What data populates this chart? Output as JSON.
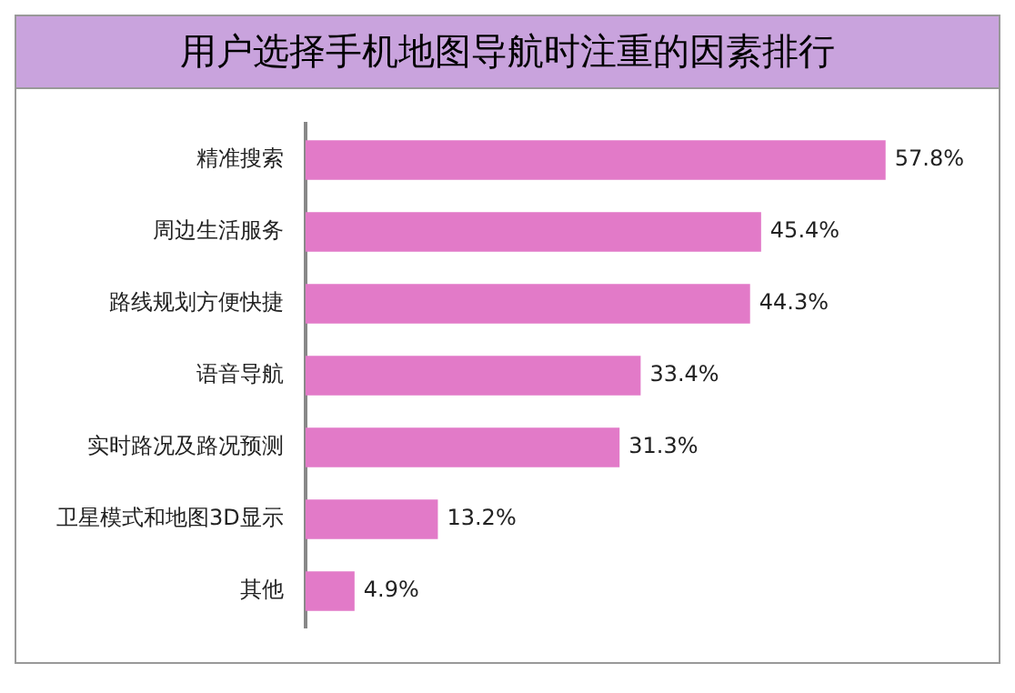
{
  "chart_data": {
    "type": "bar",
    "orientation": "horizontal",
    "title": "用户选择手机地图导航时注重的因素排行",
    "categories": [
      "精准搜索",
      "周边生活服务",
      "路线规划方便快捷",
      "语音导航",
      "实时路况及路况预测",
      "卫星模式和地图3D显示",
      "其他"
    ],
    "values": [
      57.8,
      45.4,
      44.3,
      33.4,
      31.3,
      13.2,
      4.9
    ],
    "value_labels": [
      "57.8%",
      "45.4%",
      "44.3%",
      "33.4%",
      "31.3%",
      "13.2%",
      "4.9%"
    ],
    "color": "#e27ac8",
    "grid": false,
    "legend": false
  }
}
